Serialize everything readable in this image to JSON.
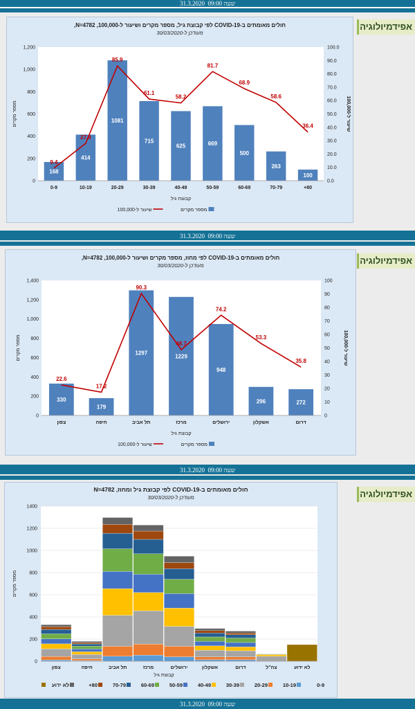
{
  "header": {
    "date": "31.3.2020",
    "time": "09:00",
    "time_label": "שעה"
  },
  "side_tab": {
    "label": "אפידמיולוגיה"
  },
  "chart_data": [
    {
      "type": "bar",
      "title": "חולים מאומתים ב-COVID-19 לפי קבוצת גיל, מספר מקרים ושיעור ל-100,000, N=4782,",
      "subtitle": "מעודכן ל-30/03/2020",
      "xlabel": "קבוצת גיל",
      "ylabel": "מספר מקרים",
      "y2label": "שיעור ל-100,000",
      "categories": [
        "0-9",
        "10-19",
        "20-29",
        "30-39",
        "40-49",
        "50-59",
        "60-69",
        "70-79",
        "+80"
      ],
      "series": [
        {
          "name": "מספר מקרים",
          "type": "bar",
          "values": [
            168,
            414,
            1081,
            715,
            625,
            669,
            500,
            263,
            100
          ]
        },
        {
          "name": "שיעור ל-100,000",
          "type": "line",
          "axis": "right",
          "values": [
            9.4,
            27.9,
            85.9,
            61.1,
            58.2,
            81.7,
            68.9,
            58.6,
            36.4
          ]
        }
      ],
      "ylim": [
        0,
        1200
      ],
      "yticks": [
        "0",
        "200",
        "400",
        "600",
        "800",
        "1,000",
        "1,200"
      ],
      "y2lim": [
        0,
        100
      ],
      "y2ticks": [
        "0.0",
        "10.0",
        "20.0",
        "30.0",
        "40.0",
        "50.0",
        "60.0",
        "70.0",
        "80.0",
        "90.0",
        "100.0"
      ],
      "legend_position": "bottom",
      "grid": false,
      "colors": {
        "bar": "#4f81bd",
        "line": "#c00000"
      }
    },
    {
      "type": "bar",
      "title": "חולים מאומתים ב-COVID-19 לפי מחוז, מספר מקרים ושיעור ל-100,000, N=4782,",
      "subtitle": "מעודכן ל-30/03/2020",
      "xlabel": "קבוצת גיל",
      "ylabel": "מספר מקרים",
      "y2label": "שיעור ל-100,000",
      "categories": [
        "צפון",
        "חיפה",
        "תל אביב",
        "מרכז",
        "ירושלים",
        "אשקלון",
        "דרום"
      ],
      "series": [
        {
          "name": "מספר מקרים",
          "type": "bar",
          "values": [
            330,
            179,
            1297,
            1229,
            948,
            296,
            272
          ]
        },
        {
          "name": "שיעור ל-100,000",
          "type": "line",
          "axis": "right",
          "values": [
            22.6,
            17.2,
            90.3,
            48.7,
            74.2,
            53.3,
            35.8
          ]
        }
      ],
      "ylim": [
        0,
        1400
      ],
      "yticks": [
        "0",
        "200",
        "400",
        "600",
        "800",
        "1,000",
        "1,200",
        "1,400"
      ],
      "y2lim": [
        0,
        100
      ],
      "y2ticks": [
        "0",
        "10",
        "20",
        "30",
        "40",
        "50",
        "60",
        "70",
        "80",
        "90",
        "100"
      ],
      "legend_position": "bottom",
      "grid": false,
      "colors": {
        "bar": "#4f81bd",
        "line": "#c00000"
      }
    },
    {
      "type": "bar",
      "stacked": true,
      "title": "חולים מאומתים ב-COVID-19 לפי קבוצת גיל ומחוז, N=4782",
      "subtitle": "מעודכן ל-30/03/2020",
      "xlabel": "קבוצת גיל",
      "ylabel": "מספר מקרים",
      "categories": [
        "צפון",
        "חיפה",
        "תל אביב",
        "מרכז",
        "ירושלים",
        "אשקלון",
        "דרום",
        "צה\"ל",
        "לא ידוע"
      ],
      "series": [
        {
          "name": "0-9",
          "color": "#5b9bd5",
          "values": [
            12,
            6,
            45,
            55,
            40,
            14,
            14,
            0,
            0
          ]
        },
        {
          "name": "10-19",
          "color": "#ed7d31",
          "values": [
            30,
            15,
            90,
            100,
            95,
            25,
            25,
            0,
            0
          ]
        },
        {
          "name": "20-29",
          "color": "#a5a5a5",
          "values": [
            70,
            40,
            280,
            300,
            180,
            60,
            55,
            45,
            0
          ]
        },
        {
          "name": "30-39",
          "color": "#ffc000",
          "values": [
            45,
            25,
            240,
            165,
            165,
            40,
            35,
            15,
            0
          ]
        },
        {
          "name": "40-49",
          "color": "#4472c4",
          "values": [
            45,
            25,
            155,
            165,
            130,
            40,
            40,
            5,
            0
          ]
        },
        {
          "name": "50-59",
          "color": "#70ad47",
          "values": [
            45,
            25,
            205,
            185,
            130,
            40,
            40,
            2,
            0
          ]
        },
        {
          "name": "60-69",
          "color": "#255e91",
          "values": [
            40,
            20,
            140,
            130,
            95,
            35,
            30,
            0,
            0
          ]
        },
        {
          "name": "70-79",
          "color": "#9e480e",
          "values": [
            25,
            12,
            80,
            75,
            55,
            22,
            15,
            0,
            0
          ]
        },
        {
          "name": "+80",
          "color": "#636363",
          "values": [
            18,
            11,
            62,
            54,
            58,
            20,
            18,
            0,
            0
          ]
        },
        {
          "name": "לא ידוע",
          "color": "#997300",
          "values": [
            0,
            0,
            0,
            0,
            0,
            0,
            0,
            0,
            150
          ]
        }
      ],
      "ylim": [
        0,
        1400
      ],
      "yticks": [
        "0",
        "200",
        "400",
        "600",
        "800",
        "1000",
        "1200",
        "1400"
      ],
      "legend_position": "bottom",
      "grid": true
    }
  ]
}
